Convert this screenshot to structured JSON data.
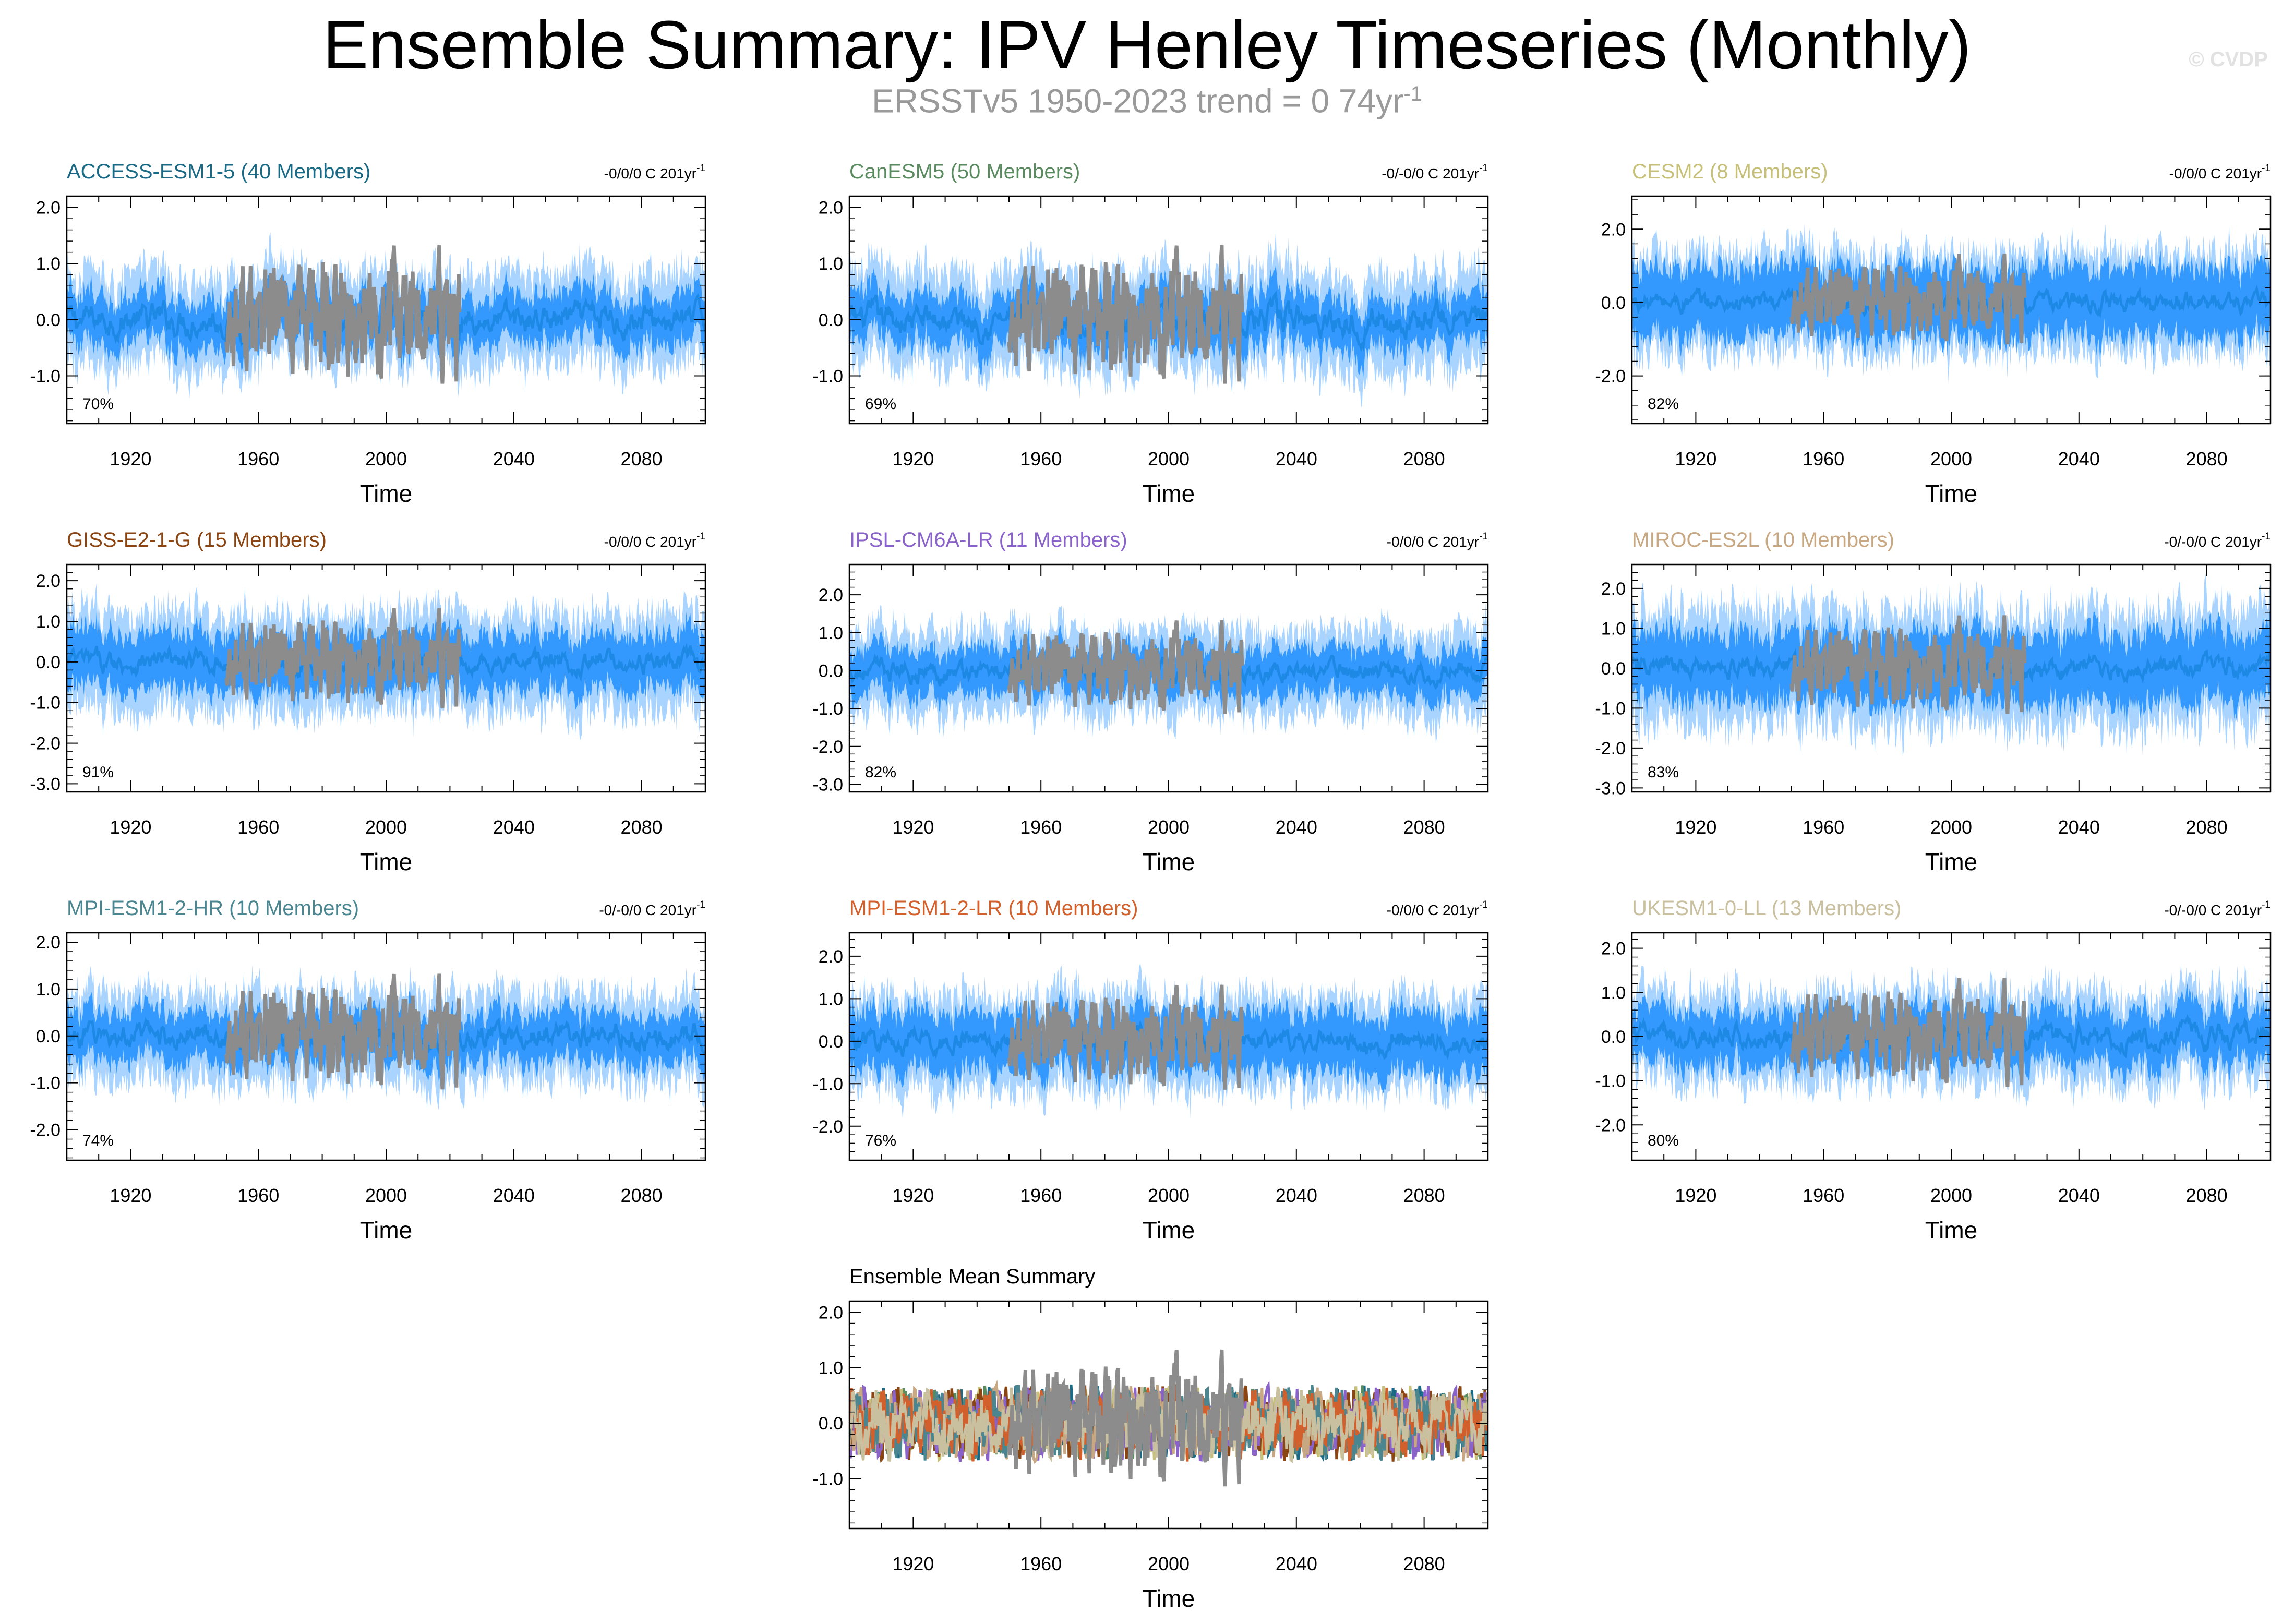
{
  "title": "Ensemble Summary: IPV Henley Timeseries (Monthly)",
  "subtitle": "ERSSTv5 1950-2023 trend = 0 74yr",
  "subtitle_exponent": "-1",
  "watermark": "© CVDP",
  "xlabel": "Time",
  "xticks": [
    "1920",
    "1960",
    "2000",
    "2040",
    "2080"
  ],
  "trend_unit_exponent": "-1",
  "colors": {
    "observed": "#8c8c8c",
    "ensemble_mean": "#1e88e5",
    "range_inner": "#3399ff",
    "range_outer": "#a8d4ff"
  },
  "chart_data": [
    {
      "type": "area",
      "title": "ACCESS-ESM1-5 (40 Members)",
      "title_color": "#1a6a86",
      "trend_label": "-0/0/0 C 201yr",
      "percent": "70%",
      "ylim": [
        -1.85,
        2.2
      ],
      "yticks": [
        "2.0",
        "1.0",
        "0.0",
        "-1.0"
      ],
      "ytick_values": [
        2.0,
        1.0,
        0.0,
        -1.0
      ],
      "xlim": [
        1900,
        2100
      ],
      "obs_years": [
        1950,
        2023
      ],
      "inner_amp": 0.5,
      "outer_amp": 0.95,
      "xlabel": "Time"
    },
    {
      "type": "area",
      "title": "CanESM5 (50 Members)",
      "title_color": "#5a8a5f",
      "trend_label": "-0/-0/0 C 201yr",
      "percent": "69%",
      "ylim": [
        -1.85,
        2.2
      ],
      "yticks": [
        "2.0",
        "1.0",
        "0.0",
        "-1.0"
      ],
      "ytick_values": [
        2.0,
        1.0,
        0.0,
        -1.0
      ],
      "xlim": [
        1900,
        2100
      ],
      "obs_years": [
        1950,
        2023
      ],
      "inner_amp": 0.5,
      "outer_amp": 1.0,
      "xlabel": "Time"
    },
    {
      "type": "area",
      "title": "CESM2 (8 Members)",
      "title_color": "#c7c07a",
      "trend_label": "-0/0/0 C 201yr",
      "percent": "82%",
      "ylim": [
        -3.3,
        2.9
      ],
      "yticks": [
        "2.0",
        "0.0",
        "-2.0"
      ],
      "ytick_values": [
        2.0,
        0.0,
        -2.0
      ],
      "xlim": [
        1900,
        2100
      ],
      "obs_years": [
        1950,
        2023
      ],
      "inner_amp": 1.1,
      "outer_amp": 1.6,
      "xlabel": "Time"
    },
    {
      "type": "area",
      "title": "GISS-E2-1-G (15 Members)",
      "title_color": "#8b4513",
      "trend_label": "-0/0/0 C 201yr",
      "percent": "91%",
      "ylim": [
        -3.2,
        2.4
      ],
      "yticks": [
        "2.0",
        "1.0",
        "0.0",
        "-1.0",
        "-2.0",
        "-3.0"
      ],
      "ytick_values": [
        2.0,
        1.0,
        0.0,
        -1.0,
        -2.0,
        -3.0
      ],
      "xlim": [
        1900,
        2100
      ],
      "obs_years": [
        1950,
        2023
      ],
      "inner_amp": 0.8,
      "outer_amp": 1.4,
      "xlabel": "Time"
    },
    {
      "type": "area",
      "title": "IPSL-CM6A-LR (11 Members)",
      "title_color": "#8a63c9",
      "trend_label": "-0/0/0 C 201yr",
      "percent": "82%",
      "ylim": [
        -3.2,
        2.8
      ],
      "yticks": [
        "2.0",
        "1.0",
        "0.0",
        "-1.0",
        "-2.0",
        "-3.0"
      ],
      "ytick_values": [
        2.0,
        1.0,
        0.0,
        -1.0,
        -2.0,
        -3.0
      ],
      "xlim": [
        1900,
        2100
      ],
      "obs_years": [
        1950,
        2023
      ],
      "inner_amp": 0.7,
      "outer_amp": 1.3,
      "xlabel": "Time"
    },
    {
      "type": "area",
      "title": "MIROC-ES2L (10 Members)",
      "title_color": "#c8a882",
      "trend_label": "-0/-0/0 C 201yr",
      "percent": "83%",
      "ylim": [
        -3.1,
        2.6
      ],
      "yticks": [
        "2.0",
        "1.0",
        "0.0",
        "-1.0",
        "-2.0",
        "-3.0"
      ],
      "ytick_values": [
        2.0,
        1.0,
        0.0,
        -1.0,
        -2.0,
        -3.0
      ],
      "xlim": [
        1900,
        2100
      ],
      "obs_years": [
        1950,
        2023
      ],
      "inner_amp": 1.0,
      "outer_amp": 1.7,
      "xlabel": "Time"
    },
    {
      "type": "area",
      "title": "MPI-ESM1-2-HR (10 Members)",
      "title_color": "#4a8590",
      "trend_label": "-0/-0/0 C 201yr",
      "percent": "74%",
      "ylim": [
        -2.65,
        2.2
      ],
      "yticks": [
        "2.0",
        "1.0",
        "0.0",
        "-1.0",
        "-2.0"
      ],
      "ytick_values": [
        2.0,
        1.0,
        0.0,
        -1.0,
        -2.0
      ],
      "xlim": [
        1900,
        2100
      ],
      "obs_years": [
        1950,
        2023
      ],
      "inner_amp": 0.6,
      "outer_amp": 1.1,
      "xlabel": "Time"
    },
    {
      "type": "area",
      "title": "MPI-ESM1-2-LR (10 Members)",
      "title_color": "#d2602d",
      "trend_label": "-0/0/0 C 201yr",
      "percent": "76%",
      "ylim": [
        -2.8,
        2.55
      ],
      "yticks": [
        "2.0",
        "1.0",
        "0.0",
        "-1.0",
        "-2.0"
      ],
      "ytick_values": [
        2.0,
        1.0,
        0.0,
        -1.0,
        -2.0
      ],
      "xlim": [
        1900,
        2100
      ],
      "obs_years": [
        1950,
        2023
      ],
      "inner_amp": 0.8,
      "outer_amp": 1.3,
      "xlabel": "Time"
    },
    {
      "type": "area",
      "title": "UKESM1-0-LL (13 Members)",
      "title_color": "#c9c0a0",
      "trend_label": "-0/-0/0 C 201yr",
      "percent": "80%",
      "ylim": [
        -2.8,
        2.35
      ],
      "yticks": [
        "2.0",
        "1.0",
        "0.0",
        "-1.0",
        "-2.0"
      ],
      "ytick_values": [
        2.0,
        1.0,
        0.0,
        -1.0,
        -2.0
      ],
      "xlim": [
        1900,
        2100
      ],
      "obs_years": [
        1950,
        2023
      ],
      "inner_amp": 0.7,
      "outer_amp": 1.2,
      "xlabel": "Time"
    },
    {
      "type": "line",
      "title": "Ensemble Mean Summary",
      "title_color": "#000000",
      "ylim": [
        -1.9,
        2.2
      ],
      "yticks": [
        "2.0",
        "1.0",
        "0.0",
        "-1.0"
      ],
      "ytick_values": [
        2.0,
        1.0,
        0.0,
        -1.0
      ],
      "xlim": [
        1900,
        2100
      ],
      "obs_years": [
        1950,
        2023
      ],
      "xlabel": "Time",
      "series_colors": [
        "#1a6a86",
        "#5a8a5f",
        "#c7c07a",
        "#8b4513",
        "#8a63c9",
        "#c8a882",
        "#4a8590",
        "#d2602d",
        "#c9c0a0"
      ]
    }
  ]
}
